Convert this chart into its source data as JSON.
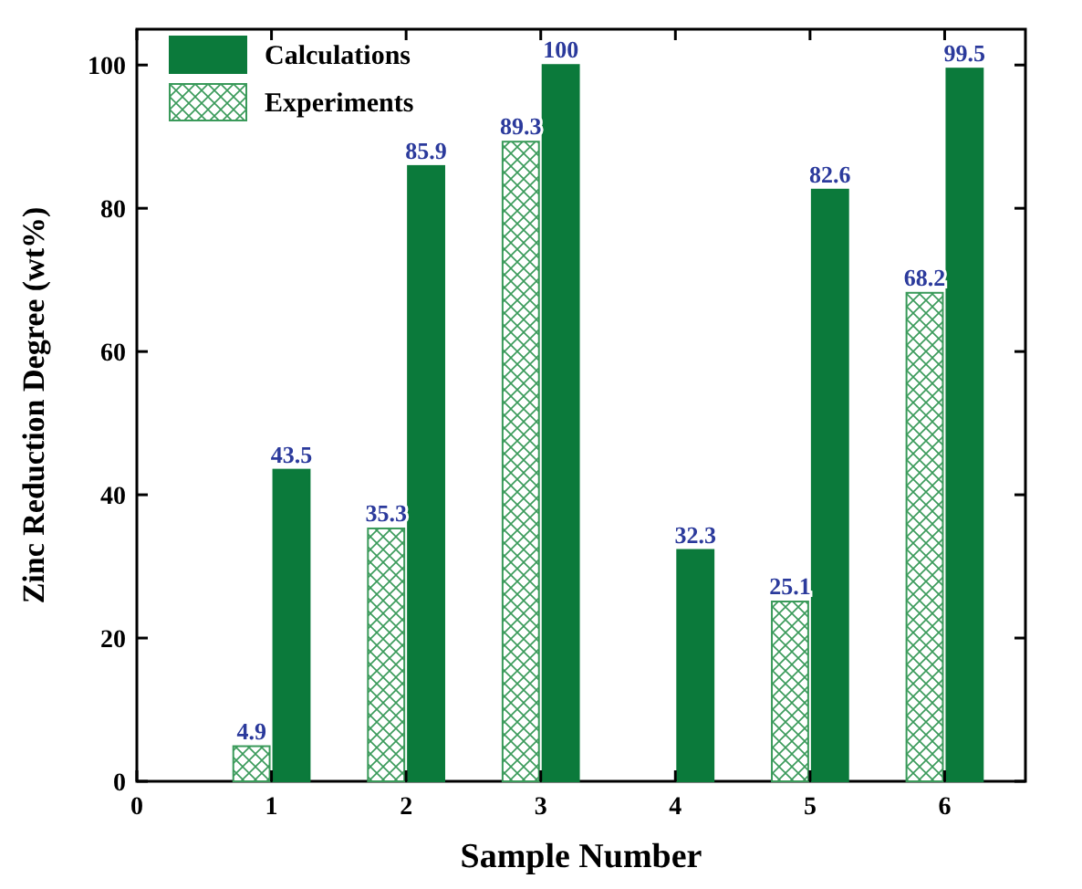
{
  "chart_data": {
    "type": "bar",
    "xlabel": "Sample Number",
    "ylabel": "Zinc Reduction Degree (wt%)",
    "x": [
      1,
      2,
      3,
      4,
      5,
      6
    ],
    "xlim": [
      0,
      6.6
    ],
    "xticks": [
      0,
      1,
      2,
      3,
      4,
      5,
      6
    ],
    "ylim": [
      0,
      105
    ],
    "yticks": [
      0,
      20,
      40,
      60,
      80,
      100
    ],
    "series": [
      {
        "name": "Calculations",
        "color": "#0b7a3b",
        "values": [
          43.5,
          85.9,
          100,
          32.3,
          82.6,
          99.5
        ]
      },
      {
        "name": "Experiments",
        "color": "#3a9a5a",
        "values": [
          4.9,
          35.3,
          89.3,
          null,
          25.1,
          68.2
        ]
      }
    ],
    "data_labels": true,
    "legend": "top left",
    "grid": false
  }
}
